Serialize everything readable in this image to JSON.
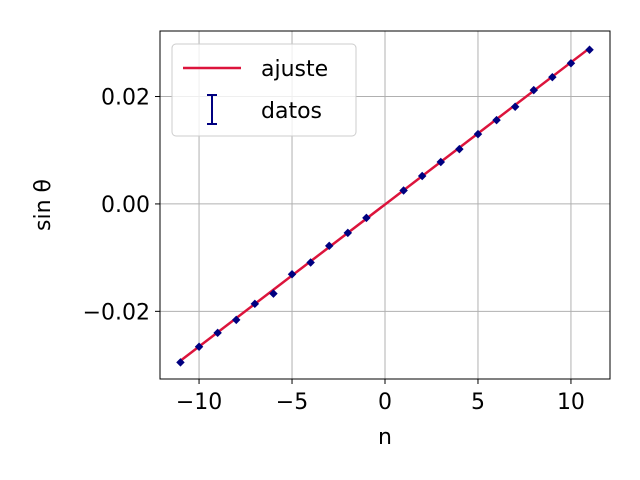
{
  "chart_data": {
    "type": "scatter",
    "xlabel": "n",
    "ylabel": "sin θ",
    "xlim": [
      -12.1,
      12.1
    ],
    "ylim": [
      -0.0326,
      0.0322
    ],
    "x_ticks": [
      -10,
      -5,
      0,
      5,
      10
    ],
    "x_tick_labels": [
      "−10",
      "−5",
      "0",
      "5",
      "10"
    ],
    "y_ticks": [
      -0.02,
      0.0,
      0.02
    ],
    "y_tick_labels": [
      "−0.02",
      "0.00",
      "0.02"
    ],
    "grid": true,
    "legend_position": "top-left",
    "colors": {
      "fit": "#dc143c",
      "data": "#000080",
      "grid": "#b0b0b0"
    },
    "series": [
      {
        "name": "ajuste",
        "kind": "line",
        "x": [
          -11,
          11
        ],
        "y": [
          -0.0292,
          0.029
        ]
      },
      {
        "name": "datos",
        "kind": "errorbar",
        "x": [
          -11,
          -10,
          -9,
          -8,
          -7,
          -6,
          -5,
          -4,
          -3,
          -2,
          -1,
          1,
          2,
          3,
          4,
          5,
          6,
          7,
          8,
          9,
          10,
          11
        ],
        "y": [
          -0.0295,
          -0.0266,
          -0.024,
          -0.0216,
          -0.0186,
          -0.0167,
          -0.0131,
          -0.0109,
          -0.0078,
          -0.0054,
          -0.0026,
          0.0025,
          0.0052,
          0.0078,
          0.0102,
          0.013,
          0.0156,
          0.0181,
          0.0212,
          0.0236,
          0.0262,
          0.0287
        ],
        "yerr": 0.0006
      }
    ]
  }
}
